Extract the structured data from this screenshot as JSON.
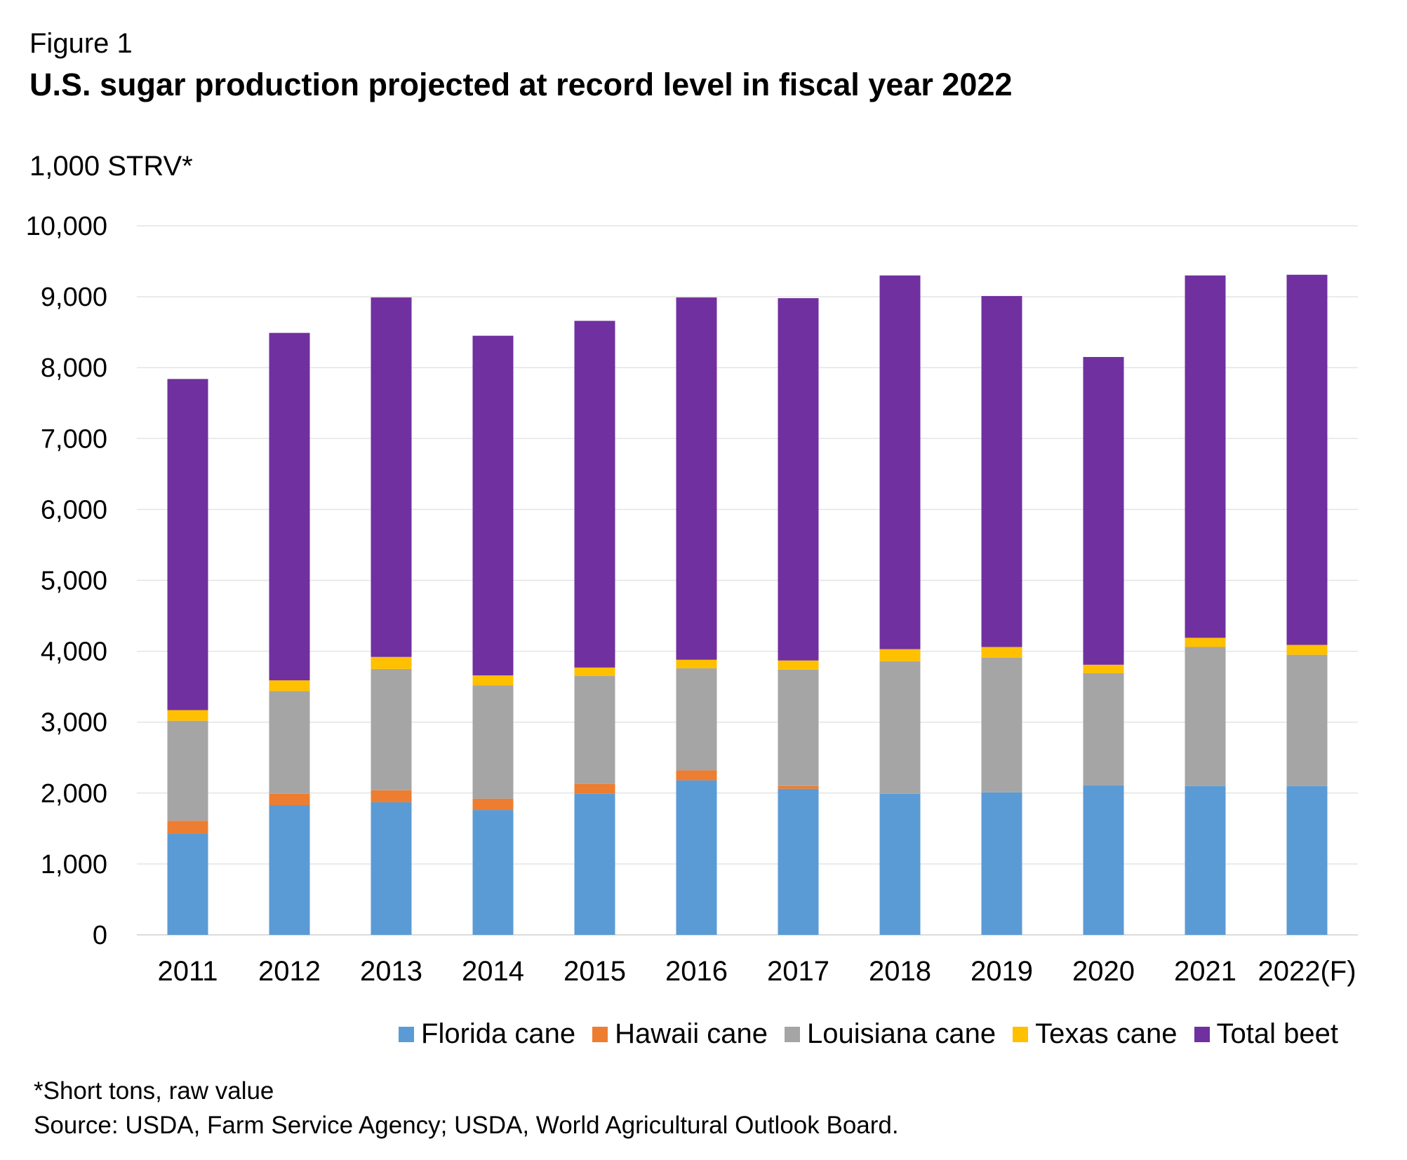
{
  "figure_label": "Figure 1",
  "chart_data": {
    "type": "bar",
    "stacked": true,
    "title": "U.S. sugar production projected at record level in fiscal year 2022",
    "ylabel": "1,000 STRV*",
    "xlabel": "",
    "ylim": [
      0,
      10000
    ],
    "yticks": [
      "0",
      "1,000",
      "2,000",
      "3,000",
      "4,000",
      "5,000",
      "6,000",
      "7,000",
      "8,000",
      "9,000",
      "10,000"
    ],
    "ytick_values": [
      0,
      1000,
      2000,
      3000,
      4000,
      5000,
      6000,
      7000,
      8000,
      9000,
      10000
    ],
    "grid": true,
    "legend_position": "bottom",
    "categories": [
      "2011",
      "2012",
      "2013",
      "2014",
      "2015",
      "2016",
      "2017",
      "2018",
      "2019",
      "2020",
      "2021",
      "2022(F)"
    ],
    "series": [
      {
        "name": "Florida cane",
        "color": "#5B9BD5",
        "values": [
          1430,
          1830,
          1870,
          1760,
          1990,
          2180,
          2060,
          1990,
          2010,
          2110,
          2100,
          2100
        ]
      },
      {
        "name": "Hawaii cane",
        "color": "#ED7D31",
        "values": [
          180,
          160,
          170,
          160,
          140,
          140,
          40,
          0,
          0,
          0,
          0,
          0
        ]
      },
      {
        "name": "Louisiana cane",
        "color": "#A5A5A5",
        "values": [
          1410,
          1450,
          1710,
          1600,
          1520,
          1440,
          1640,
          1870,
          1900,
          1580,
          1960,
          1850
        ]
      },
      {
        "name": "Texas cane",
        "color": "#FFC000",
        "values": [
          150,
          150,
          170,
          140,
          120,
          120,
          130,
          170,
          150,
          120,
          130,
          140
        ]
      },
      {
        "name": "Total beet",
        "color": "#7030A0",
        "values": [
          4670,
          4900,
          5070,
          4790,
          4890,
          5110,
          5110,
          5270,
          4950,
          4340,
          5110,
          5220
        ]
      }
    ]
  },
  "footnote": "*Short tons, raw value",
  "source": "Source: USDA, Farm Service Agency; USDA, World Agricultural Outlook Board."
}
